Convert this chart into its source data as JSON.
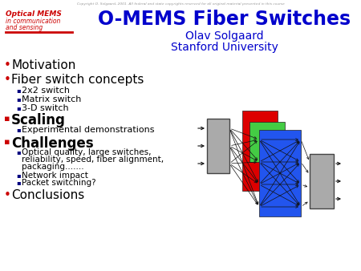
{
  "title": "O-MEMS Fiber Switches",
  "subtitle1": "Olav Solgaard",
  "subtitle2": "Stanford University",
  "logo_line1": "Optical MEMS",
  "logo_line2": "in communication",
  "logo_line3": "and sensing",
  "copyright": "Copyright O. Solgaard, 2001. All federal and state copyrights reserved for all original material presented in this course",
  "bg_color": "#ffffff",
  "title_color": "#0000cc",
  "subtitle_color": "#0000cc",
  "logo_color": "#cc0000",
  "bullet_color_red": "#cc0000",
  "bullet_color_blue": "#000080",
  "text_color": "#000000",
  "red_line_color": "#cc0000",
  "bullet1": "Motivation",
  "bullet2": "Fiber switch concepts",
  "sub2a": "2x2 switch",
  "sub2b": "Matrix switch",
  "sub2c": "3-D switch",
  "bullet3": "Scaling",
  "sub3a": "Experimental demonstrations",
  "bullet4": "Challenges",
  "sub4b": "Network impact",
  "sub4c": "Packet switching?",
  "bullet5": "Conclusions",
  "gray_color": "#aaaaaa",
  "red_color": "#dd0000",
  "green_color": "#44cc44",
  "blue_color": "#2255ee",
  "arrow_color": "#111111"
}
